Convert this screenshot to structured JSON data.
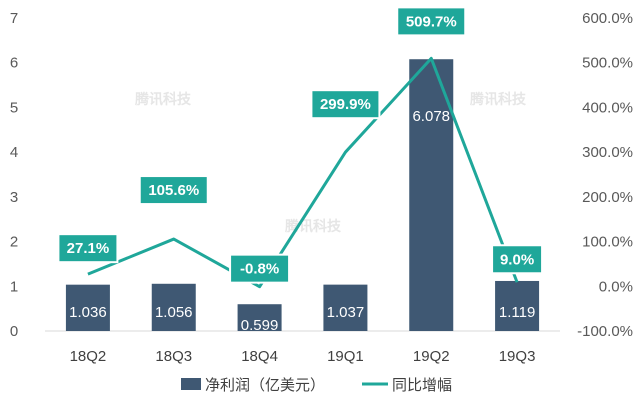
{
  "chart_data": {
    "type": "bar",
    "categories": [
      "18Q2",
      "18Q3",
      "18Q4",
      "19Q1",
      "19Q2",
      "19Q3"
    ],
    "series": [
      {
        "name": "净利润（亿美元）",
        "type": "bar",
        "axis": "left",
        "values": [
          1.036,
          1.056,
          0.599,
          1.037,
          6.078,
          1.119
        ],
        "labels": [
          "1.036",
          "1.056",
          "0.599",
          "1.037",
          "6.078",
          "1.119"
        ],
        "color": "#3f5873"
      },
      {
        "name": "同比增幅",
        "type": "line",
        "axis": "right",
        "values": [
          27.1,
          105.6,
          -0.8,
          299.9,
          509.7,
          9.0
        ],
        "labels": [
          "27.1%",
          "105.6%",
          "-0.8%",
          "299.9%",
          "509.7%",
          "9.0%"
        ],
        "color": "#1fa79a"
      }
    ],
    "y_left": {
      "ylim": [
        0,
        7
      ],
      "ticks": [
        "0",
        "1",
        "2",
        "3",
        "4",
        "5",
        "6",
        "7"
      ]
    },
    "y_right": {
      "ylim": [
        -100,
        600
      ],
      "ticks": [
        "-100.0%",
        "0.0%",
        "100.0%",
        "200.0%",
        "300.0%",
        "400.0%",
        "500.0%",
        "600.0%"
      ]
    },
    "legend": {
      "position": "bottom"
    },
    "grid": false,
    "watermark": "腾讯科技"
  }
}
